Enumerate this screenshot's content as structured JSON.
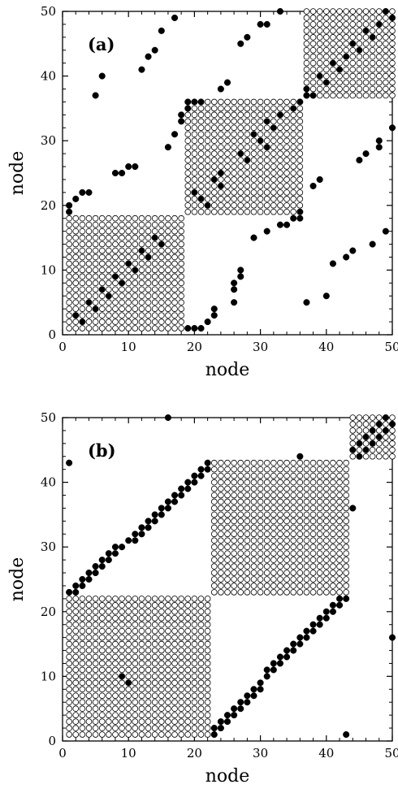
{
  "chart_data": [
    {
      "type": "scatter",
      "panel_label": "(a)",
      "xlabel": "node",
      "ylabel": "node",
      "xlim": [
        0,
        50
      ],
      "ylim": [
        0,
        50
      ],
      "xticks": [
        0,
        10,
        20,
        30,
        40,
        50
      ],
      "yticks": [
        0,
        10,
        20,
        30,
        40,
        50
      ],
      "blocks": [
        {
          "x_range": [
            1,
            18
          ],
          "y_range": [
            1,
            18
          ]
        },
        {
          "x_range": [
            19,
            36
          ],
          "y_range": [
            19,
            36
          ]
        },
        {
          "x_range": [
            37,
            50
          ],
          "y_range": [
            37,
            50
          ]
        }
      ],
      "filled_points": [
        [
          1,
          19
        ],
        [
          1,
          20
        ],
        [
          2,
          21
        ],
        [
          3,
          22
        ],
        [
          4,
          22
        ],
        [
          5,
          37
        ],
        [
          6,
          40
        ],
        [
          8,
          25
        ],
        [
          9,
          25
        ],
        [
          10,
          26
        ],
        [
          11,
          26
        ],
        [
          12,
          41
        ],
        [
          13,
          43
        ],
        [
          14,
          44
        ],
        [
          15,
          47
        ],
        [
          17,
          49
        ],
        [
          16,
          29
        ],
        [
          17,
          31
        ],
        [
          18,
          33
        ],
        [
          18,
          34
        ],
        [
          19,
          35
        ],
        [
          19,
          36
        ],
        [
          20,
          36
        ],
        [
          21,
          36
        ],
        [
          2,
          3
        ],
        [
          3,
          2
        ],
        [
          4,
          5
        ],
        [
          5,
          4
        ],
        [
          6,
          7
        ],
        [
          7,
          6
        ],
        [
          8,
          9
        ],
        [
          9,
          8
        ],
        [
          10,
          11
        ],
        [
          11,
          10
        ],
        [
          12,
          13
        ],
        [
          13,
          12
        ],
        [
          14,
          15
        ],
        [
          15,
          14
        ],
        [
          19,
          1
        ],
        [
          20,
          1
        ],
        [
          21,
          1
        ],
        [
          22,
          2
        ],
        [
          23,
          3
        ],
        [
          23,
          4
        ],
        [
          26,
          5
        ],
        [
          26,
          7
        ],
        [
          26,
          8
        ],
        [
          27,
          9
        ],
        [
          27,
          10
        ],
        [
          29,
          15
        ],
        [
          31,
          16
        ],
        [
          33,
          17
        ],
        [
          34,
          17
        ],
        [
          35,
          18
        ],
        [
          36,
          18
        ],
        [
          36,
          19
        ],
        [
          37,
          5
        ],
        [
          40,
          6
        ],
        [
          41,
          11
        ],
        [
          43,
          12
        ],
        [
          44,
          13
        ],
        [
          47,
          14
        ],
        [
          49,
          16
        ],
        [
          50,
          32
        ],
        [
          45,
          27
        ],
        [
          46,
          28
        ],
        [
          48,
          29
        ],
        [
          48,
          30
        ],
        [
          22,
          20
        ],
        [
          21,
          21
        ],
        [
          20,
          22
        ],
        [
          24,
          23
        ],
        [
          23,
          24
        ],
        [
          24,
          25
        ],
        [
          27,
          28
        ],
        [
          28,
          27
        ],
        [
          29,
          31
        ],
        [
          31,
          29
        ],
        [
          30,
          30
        ],
        [
          32,
          32
        ],
        [
          31,
          33
        ],
        [
          33,
          34
        ],
        [
          35,
          35
        ],
        [
          36,
          36
        ],
        [
          24,
          38
        ],
        [
          25,
          39
        ],
        [
          27,
          45
        ],
        [
          28,
          46
        ],
        [
          30,
          48
        ],
        [
          31,
          48
        ],
        [
          33,
          50
        ],
        [
          38,
          23
        ],
        [
          39,
          24
        ],
        [
          37,
          37
        ],
        [
          37,
          38
        ],
        [
          38,
          37
        ],
        [
          39,
          40
        ],
        [
          40,
          39
        ],
        [
          41,
          42
        ],
        [
          42,
          41
        ],
        [
          43,
          43
        ],
        [
          44,
          45
        ],
        [
          45,
          44
        ],
        [
          46,
          47
        ],
        [
          47,
          46
        ],
        [
          48,
          48
        ],
        [
          49,
          50
        ],
        [
          50,
          49
        ]
      ]
    },
    {
      "type": "scatter",
      "panel_label": "(b)",
      "xlabel": "node",
      "ylabel": "node",
      "xlim": [
        0,
        50
      ],
      "ylim": [
        0,
        50
      ],
      "xticks": [
        0,
        10,
        20,
        30,
        40,
        50
      ],
      "yticks": [
        0,
        10,
        20,
        30,
        40,
        50
      ],
      "blocks": [
        {
          "x_range": [
            1,
            22
          ],
          "y_range": [
            1,
            22
          ]
        },
        {
          "x_range": [
            23,
            43
          ],
          "y_range": [
            23,
            43
          ]
        },
        {
          "x_range": [
            44,
            50
          ],
          "y_range": [
            44,
            50
          ]
        }
      ],
      "filled_points": [
        [
          1,
          43
        ],
        [
          16,
          50
        ],
        [
          36,
          44
        ],
        [
          44,
          36
        ],
        [
          43,
          1
        ],
        [
          50,
          16
        ],
        [
          9,
          10
        ],
        [
          10,
          9
        ],
        [
          1,
          23
        ],
        [
          2,
          23
        ],
        [
          2,
          24
        ],
        [
          3,
          24
        ],
        [
          3,
          25
        ],
        [
          4,
          25
        ],
        [
          4,
          26
        ],
        [
          5,
          26
        ],
        [
          5,
          27
        ],
        [
          6,
          27
        ],
        [
          6,
          28
        ],
        [
          7,
          28
        ],
        [
          7,
          29
        ],
        [
          8,
          29
        ],
        [
          8,
          30
        ],
        [
          9,
          30
        ],
        [
          10,
          31
        ],
        [
          11,
          31
        ],
        [
          11,
          32
        ],
        [
          12,
          32
        ],
        [
          12,
          33
        ],
        [
          13,
          33
        ],
        [
          13,
          34
        ],
        [
          14,
          34
        ],
        [
          14,
          35
        ],
        [
          15,
          35
        ],
        [
          15,
          36
        ],
        [
          16,
          36
        ],
        [
          16,
          37
        ],
        [
          17,
          37
        ],
        [
          17,
          38
        ],
        [
          18,
          38
        ],
        [
          18,
          39
        ],
        [
          19,
          39
        ],
        [
          19,
          40
        ],
        [
          20,
          40
        ],
        [
          20,
          41
        ],
        [
          21,
          41
        ],
        [
          21,
          42
        ],
        [
          22,
          42
        ],
        [
          22,
          43
        ],
        [
          23,
          1
        ],
        [
          23,
          2
        ],
        [
          24,
          2
        ],
        [
          24,
          3
        ],
        [
          25,
          3
        ],
        [
          25,
          4
        ],
        [
          26,
          4
        ],
        [
          26,
          5
        ],
        [
          27,
          5
        ],
        [
          27,
          6
        ],
        [
          28,
          6
        ],
        [
          28,
          7
        ],
        [
          29,
          7
        ],
        [
          29,
          8
        ],
        [
          30,
          8
        ],
        [
          30,
          9
        ],
        [
          31,
          10
        ],
        [
          31,
          11
        ],
        [
          32,
          11
        ],
        [
          32,
          12
        ],
        [
          33,
          12
        ],
        [
          33,
          13
        ],
        [
          34,
          13
        ],
        [
          34,
          14
        ],
        [
          35,
          14
        ],
        [
          35,
          15
        ],
        [
          36,
          15
        ],
        [
          36,
          16
        ],
        [
          37,
          16
        ],
        [
          37,
          17
        ],
        [
          38,
          17
        ],
        [
          38,
          18
        ],
        [
          39,
          18
        ],
        [
          39,
          19
        ],
        [
          40,
          19
        ],
        [
          40,
          20
        ],
        [
          41,
          20
        ],
        [
          41,
          21
        ],
        [
          42,
          21
        ],
        [
          42,
          22
        ],
        [
          43,
          22
        ],
        [
          44,
          45
        ],
        [
          45,
          44
        ],
        [
          45,
          46
        ],
        [
          46,
          45
        ],
        [
          46,
          47
        ],
        [
          47,
          46
        ],
        [
          47,
          48
        ],
        [
          48,
          47
        ],
        [
          48,
          49
        ],
        [
          49,
          48
        ],
        [
          49,
          50
        ],
        [
          50,
          49
        ]
      ]
    }
  ]
}
